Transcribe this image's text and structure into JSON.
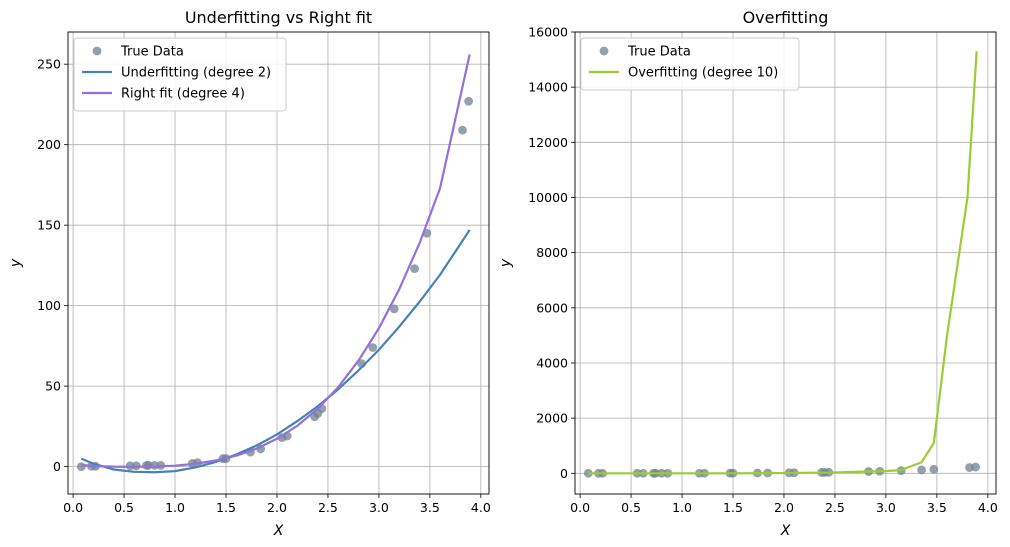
{
  "chart_data": [
    {
      "type": "scatter",
      "title": "Underfitting vs Right fit",
      "xlabel": "X",
      "ylabel": "y",
      "xlim": [
        -0.05,
        4.08
      ],
      "ylim": [
        -17,
        270
      ],
      "xticks": [
        0.0,
        0.5,
        1.0,
        1.5,
        2.0,
        2.5,
        3.0,
        3.5,
        4.0
      ],
      "xtick_labels": [
        "0.0",
        "0.5",
        "1.0",
        "1.5",
        "2.0",
        "2.5",
        "3.0",
        "3.5",
        "4.0"
      ],
      "yticks": [
        0,
        50,
        100,
        150,
        200,
        250
      ],
      "ytick_labels": [
        "0",
        "50",
        "100",
        "150",
        "200",
        "250"
      ],
      "grid": true,
      "legend_position": "top-left",
      "series": [
        {
          "name": "True Data",
          "kind": "scatter",
          "color": "#708090",
          "x": [
            0.08,
            0.18,
            0.22,
            0.56,
            0.62,
            0.72,
            0.74,
            0.8,
            0.86,
            1.17,
            1.22,
            1.47,
            1.5,
            1.74,
            1.84,
            2.05,
            2.1,
            2.37,
            2.4,
            2.44,
            2.83,
            2.94,
            3.15,
            3.35,
            3.47,
            3.82,
            3.88
          ],
          "y": [
            0.0,
            0.2,
            0.2,
            0.5,
            0.5,
            0.8,
            0.8,
            0.8,
            0.8,
            2.0,
            2.5,
            5.0,
            5.0,
            9.0,
            11.0,
            18.0,
            19.0,
            31.0,
            33.0,
            36.0,
            64.0,
            74.0,
            98.0,
            123.0,
            145.0,
            209.0,
            227.0
          ]
        },
        {
          "name": "Underfitting (degree 2)",
          "kind": "line",
          "color": "#4682B4",
          "x": [
            0.08,
            0.2,
            0.4,
            0.6,
            0.8,
            1.0,
            1.2,
            1.4,
            1.6,
            1.8,
            2.0,
            2.2,
            2.4,
            2.6,
            2.8,
            3.0,
            3.2,
            3.4,
            3.6,
            3.89
          ],
          "y": [
            5.0,
            1.8,
            -1.8,
            -3.2,
            -3.5,
            -2.8,
            -0.5,
            2.9,
            7.5,
            13.1,
            20.0,
            28.3,
            37.5,
            48.0,
            59.8,
            72.6,
            87.0,
            102.5,
            119.2,
            147.0
          ]
        },
        {
          "name": "Right fit (degree 4)",
          "kind": "line",
          "color": "#9370DB",
          "x": [
            0.08,
            0.2,
            0.4,
            0.6,
            0.8,
            1.0,
            1.2,
            1.4,
            1.6,
            1.8,
            2.0,
            2.2,
            2.4,
            2.6,
            2.8,
            3.0,
            3.2,
            3.4,
            3.6,
            3.89
          ],
          "y": [
            1.0,
            0.4,
            0.0,
            -0.1,
            0.0,
            0.6,
            1.8,
            3.8,
            6.8,
            11.2,
            17.3,
            25.4,
            36.0,
            49.3,
            65.9,
            86.0,
            110.3,
            139.0,
            173.0,
            256.0
          ]
        }
      ]
    },
    {
      "type": "scatter",
      "title": "Overfitting",
      "xlabel": "X",
      "ylabel": "y",
      "xlim": [
        -0.05,
        4.08
      ],
      "ylim": [
        -750,
        16000
      ],
      "xticks": [
        0.0,
        0.5,
        1.0,
        1.5,
        2.0,
        2.5,
        3.0,
        3.5,
        4.0
      ],
      "xtick_labels": [
        "0.0",
        "0.5",
        "1.0",
        "1.5",
        "2.0",
        "2.5",
        "3.0",
        "3.5",
        "4.0"
      ],
      "yticks": [
        0,
        2000,
        4000,
        6000,
        8000,
        10000,
        12000,
        14000,
        16000
      ],
      "ytick_labels": [
        "0",
        "2000",
        "4000",
        "6000",
        "8000",
        "10000",
        "12000",
        "14000",
        "16000"
      ],
      "grid": true,
      "legend_position": "top-left",
      "series": [
        {
          "name": "True Data",
          "kind": "scatter",
          "color": "#708090",
          "x": [
            0.08,
            0.18,
            0.22,
            0.56,
            0.62,
            0.72,
            0.74,
            0.8,
            0.86,
            1.17,
            1.22,
            1.47,
            1.5,
            1.74,
            1.84,
            2.05,
            2.1,
            2.37,
            2.4,
            2.44,
            2.83,
            2.94,
            3.15,
            3.35,
            3.47,
            3.82,
            3.88
          ],
          "y": [
            0.0,
            0.2,
            0.2,
            0.5,
            0.5,
            0.8,
            0.8,
            0.8,
            0.8,
            2.0,
            2.5,
            5.0,
            5.0,
            9.0,
            11.0,
            18.0,
            19.0,
            31.0,
            33.0,
            36.0,
            64.0,
            74.0,
            98.0,
            123.0,
            145.0,
            209.0,
            227.0
          ]
        },
        {
          "name": "Overfitting (degree 10)",
          "kind": "line",
          "color": "#9ACD32",
          "x": [
            0.08,
            0.5,
            1.0,
            1.5,
            2.0,
            2.5,
            2.8,
            3.0,
            3.15,
            3.35,
            3.47,
            3.6,
            3.8,
            3.89
          ],
          "y": [
            0,
            0,
            0,
            0,
            10,
            30,
            60,
            80,
            120,
            400,
            1100,
            5000,
            10000,
            15300
          ]
        }
      ]
    }
  ]
}
